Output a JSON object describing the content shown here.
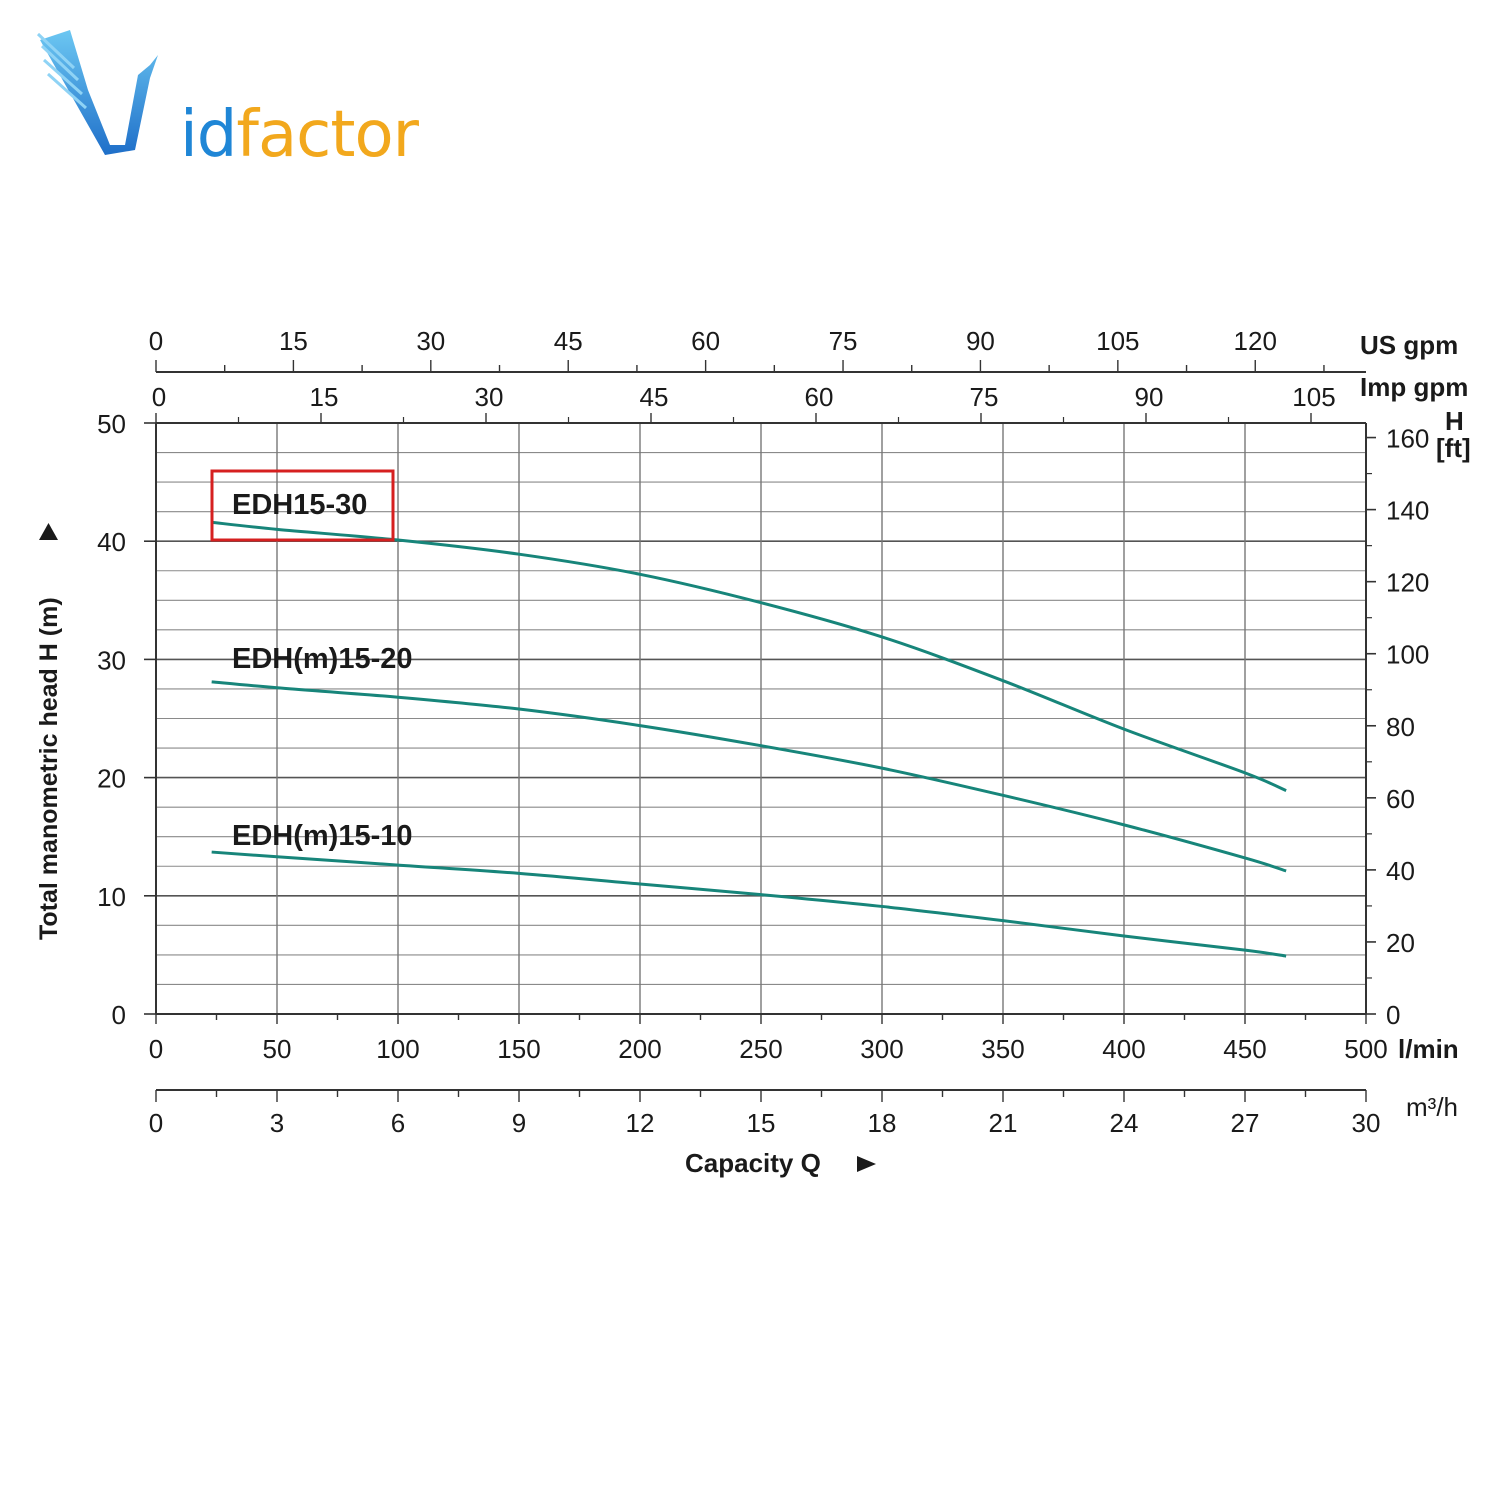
{
  "logo": {
    "text_prefix": "id",
    "text_suffix": "factor",
    "colors": {
      "blue": "#1f86d6",
      "orange": "#f2a81d"
    }
  },
  "chart_data": {
    "type": "line",
    "title": "",
    "xlabel": "Capacity Q",
    "ylabel": "Total manometric head H (m)",
    "x_unit": "l/min",
    "x2_unit": "m³/h",
    "top_axis1_unit": "US gpm",
    "top_axis2_unit": "Imp gpm",
    "right_axis_unit": "H",
    "right_axis_unit2": "[ft]",
    "xlim": [
      0,
      500
    ],
    "ylim": [
      0,
      50
    ],
    "grid": true,
    "x_ticks": [
      0,
      50,
      100,
      150,
      200,
      250,
      300,
      350,
      400,
      450,
      500
    ],
    "y_ticks": [
      0,
      10,
      20,
      30,
      40,
      50
    ],
    "x2_ticks": [
      0,
      3,
      6,
      9,
      12,
      15,
      18,
      21,
      24,
      27,
      30
    ],
    "us_gpm_ticks": [
      0,
      15,
      30,
      45,
      60,
      75,
      90,
      105,
      120
    ],
    "imp_gpm_ticks": [
      0,
      15,
      30,
      45,
      60,
      75,
      90,
      105
    ],
    "ft_ticks": [
      0,
      20,
      40,
      60,
      80,
      100,
      120,
      140,
      160
    ],
    "line_color": "#17857a",
    "highlight_color": "#d62020",
    "series": [
      {
        "name": "EDH15-30",
        "highlighted": true,
        "x": [
          23,
          50,
          100,
          150,
          200,
          250,
          300,
          350,
          400,
          450,
          467
        ],
        "y": [
          41.6,
          41.0,
          40.1,
          38.9,
          37.2,
          34.8,
          31.9,
          28.2,
          24.1,
          20.4,
          18.9
        ]
      },
      {
        "name": "EDH(m)15-20",
        "highlighted": false,
        "x": [
          23,
          50,
          100,
          150,
          200,
          250,
          300,
          350,
          400,
          450,
          467
        ],
        "y": [
          28.1,
          27.6,
          26.8,
          25.8,
          24.4,
          22.7,
          20.8,
          18.5,
          16.0,
          13.2,
          12.1
        ]
      },
      {
        "name": "EDH(m)15-10",
        "highlighted": false,
        "x": [
          23,
          50,
          100,
          150,
          200,
          250,
          300,
          350,
          400,
          450,
          467
        ],
        "y": [
          13.7,
          13.3,
          12.6,
          11.9,
          11.0,
          10.1,
          9.1,
          7.9,
          6.6,
          5.4,
          4.9
        ]
      }
    ]
  }
}
